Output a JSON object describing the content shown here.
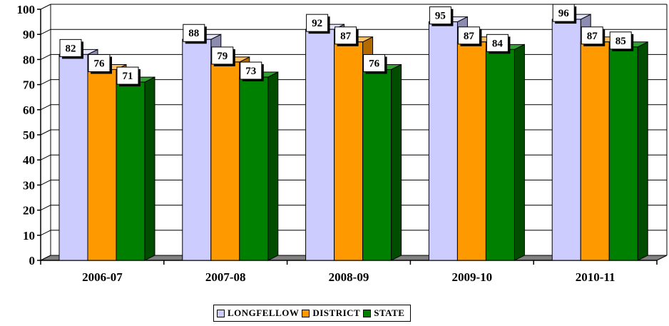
{
  "chart_data": {
    "type": "bar",
    "categories": [
      "2006-07",
      "2007-08",
      "2008-09",
      "2009-10",
      "2010-11"
    ],
    "series": [
      {
        "name": "LONGFELLOW",
        "values": [
          82,
          88,
          92,
          95,
          96
        ],
        "color": "#ccccff",
        "side": "#8c8cb0",
        "top": "#e6e6ff"
      },
      {
        "name": "DISTRICT",
        "values": [
          76,
          79,
          87,
          87,
          87
        ],
        "color": "#ff9900",
        "side": "#b36b00",
        "top": "#ffc266"
      },
      {
        "name": "STATE",
        "values": [
          71,
          73,
          76,
          84,
          85
        ],
        "color": "#008000",
        "side": "#004d00",
        "top": "#33a033"
      }
    ],
    "ylim": [
      0,
      100
    ],
    "yticks": [
      "0",
      "10",
      "20",
      "30",
      "40",
      "50",
      "60",
      "70",
      "80",
      "90",
      "100"
    ],
    "grid": true,
    "legend_position": "bottom"
  }
}
